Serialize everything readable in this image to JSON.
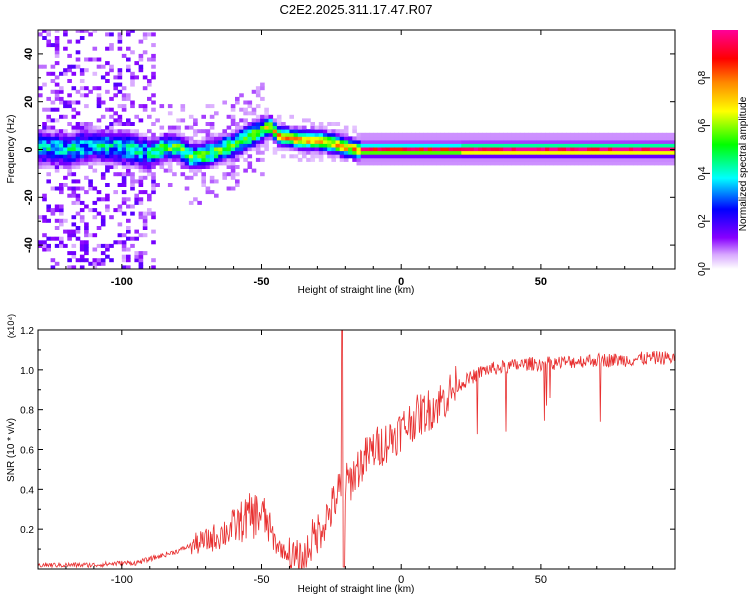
{
  "chart_data": [
    {
      "type": "heatmap",
      "title": "C2E2.2025.311.17.47.R07",
      "xlabel": "Height of straight line (km)",
      "ylabel": "Frequency (Hz)",
      "xlim": [
        -130,
        98
      ],
      "ylim": [
        -50,
        50
      ],
      "x_ticks": [
        -100,
        -50,
        0,
        50
      ],
      "x_tick_labels": [
        "-100",
        "-50",
        "0",
        "50"
      ],
      "y_ticks": [
        -40,
        -20,
        0,
        20,
        40
      ],
      "y_tick_labels": [
        "-40",
        "-20",
        "0",
        "20",
        "40"
      ],
      "colorbar": {
        "label": "Normalized spectral amplitude",
        "range": [
          0,
          1
        ],
        "ticks": [
          0.0,
          0.2,
          0.4,
          0.6,
          0.8
        ],
        "tick_labels": [
          "0.0",
          "0.2",
          "0.4",
          "0.6",
          "0.8"
        ],
        "colors": [
          "#ffffff",
          "#8800ff",
          "#0000ff",
          "#00ffff",
          "#00ff00",
          "#ffff00",
          "#ff8800",
          "#ff0000",
          "#ff0099"
        ]
      },
      "ridge": {
        "x": [
          -130,
          -120,
          -110,
          -100,
          -95,
          -90,
          -85,
          -80,
          -75,
          -70,
          -65,
          -60,
          -55,
          -50,
          -47,
          -44,
          -40,
          -35,
          -30,
          -25,
          -20,
          -15,
          -10,
          -5,
          0,
          10,
          20,
          40,
          60,
          80,
          98
        ],
        "freq": [
          1,
          0,
          2,
          1,
          0,
          -2,
          1,
          1,
          -3,
          -2,
          0,
          2,
          5,
          8,
          10,
          6,
          5,
          4,
          4,
          3,
          1,
          0,
          0,
          0,
          0,
          0,
          0,
          0,
          0,
          0,
          0
        ]
      },
      "noise_band": {
        "x_range": [
          -130,
          -88
        ],
        "freq_range": [
          -50,
          50
        ]
      }
    },
    {
      "type": "line",
      "xlabel": "Height of straight line (km)",
      "ylabel": "SNR (10 * v/v)",
      "y_scale_label": "(x10⁴)",
      "xlim": [
        -130,
        98
      ],
      "ylim": [
        0,
        1.2
      ],
      "x_ticks": [
        -100,
        -50,
        0,
        50
      ],
      "x_tick_labels": [
        "-100",
        "-50",
        "0",
        "50"
      ],
      "y_ticks": [
        0.2,
        0.4,
        0.6,
        0.8,
        1.0,
        1.2
      ],
      "y_tick_labels": [
        "0.2",
        "0.4",
        "0.6",
        "0.8",
        "1.0",
        "1.2"
      ],
      "color": "#e83030",
      "series": [
        {
          "name": "SNR",
          "x": [
            -130,
            -120,
            -110,
            -100,
            -95,
            -90,
            -85,
            -80,
            -75,
            -70,
            -65,
            -60,
            -55,
            -50,
            -48,
            -45,
            -40,
            -35,
            -33,
            -30,
            -25,
            -22,
            -21,
            -20,
            -18,
            -15,
            -10,
            -5,
            0,
            5,
            10,
            15,
            20,
            25,
            30,
            35,
            40,
            45,
            50,
            60,
            70,
            80,
            90,
            98
          ],
          "y": [
            0.02,
            0.02,
            0.02,
            0.03,
            0.03,
            0.05,
            0.07,
            0.09,
            0.12,
            0.14,
            0.17,
            0.21,
            0.26,
            0.28,
            0.23,
            0.13,
            0.06,
            0.02,
            0.12,
            0.18,
            0.3,
            0.4,
            0.3,
            0.42,
            0.45,
            0.52,
            0.6,
            0.64,
            0.7,
            0.76,
            0.8,
            0.85,
            0.92,
            0.96,
            1.0,
            1.01,
            1.02,
            1.03,
            1.03,
            1.04,
            1.05,
            1.05,
            1.06,
            1.06
          ]
        }
      ],
      "spike": {
        "x": -21,
        "y": 1.2
      }
    }
  ]
}
